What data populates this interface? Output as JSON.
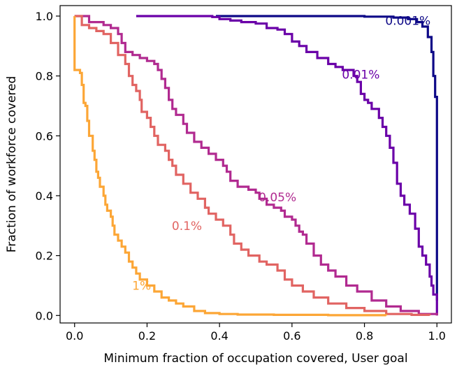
{
  "chart_data": {
    "type": "line",
    "xlabel": "Minimum fraction of occupation covered, User goal",
    "ylabel": "Fraction of workforce covered",
    "xlim": [
      -0.04,
      1.04
    ],
    "ylim": [
      -0.025,
      1.035
    ],
    "xticks": [
      "0.0",
      "0.2",
      "0.4",
      "0.6",
      "0.8",
      "1.0"
    ],
    "yticks": [
      "0.0",
      "0.2",
      "0.4",
      "0.6",
      "0.8",
      "1.0"
    ],
    "grid": false,
    "legend": "none (direct labels on curves)",
    "series": [
      {
        "name": "0.001%",
        "color": "#0d0887",
        "label_at": [
          0.92,
          0.985
        ],
        "points": [
          [
            0.39,
            1.0
          ],
          [
            0.6,
            1.0
          ],
          [
            0.8,
            0.998
          ],
          [
            0.88,
            0.995
          ],
          [
            0.92,
            0.99
          ],
          [
            0.945,
            0.98
          ],
          [
            0.96,
            0.965
          ],
          [
            0.975,
            0.93
          ],
          [
            0.985,
            0.88
          ],
          [
            0.99,
            0.8
          ],
          [
            0.995,
            0.73
          ],
          [
            1.0,
            0.705
          ],
          [
            1.0,
            0.05
          ]
        ]
      },
      {
        "name": "0.01%",
        "color": "#6a00a8",
        "label_at": [
          0.79,
          0.805
        ],
        "points": [
          [
            0.17,
            1.0
          ],
          [
            0.38,
            0.997
          ],
          [
            0.4,
            0.99
          ],
          [
            0.43,
            0.985
          ],
          [
            0.46,
            0.98
          ],
          [
            0.5,
            0.975
          ],
          [
            0.53,
            0.96
          ],
          [
            0.56,
            0.955
          ],
          [
            0.58,
            0.94
          ],
          [
            0.6,
            0.915
          ],
          [
            0.62,
            0.9
          ],
          [
            0.64,
            0.88
          ],
          [
            0.67,
            0.86
          ],
          [
            0.7,
            0.84
          ],
          [
            0.72,
            0.83
          ],
          [
            0.74,
            0.82
          ],
          [
            0.77,
            0.8
          ],
          [
            0.78,
            0.78
          ],
          [
            0.79,
            0.74
          ],
          [
            0.8,
            0.72
          ],
          [
            0.81,
            0.71
          ],
          [
            0.82,
            0.69
          ],
          [
            0.84,
            0.66
          ],
          [
            0.85,
            0.63
          ],
          [
            0.86,
            0.6
          ],
          [
            0.87,
            0.56
          ],
          [
            0.88,
            0.51
          ],
          [
            0.89,
            0.44
          ],
          [
            0.9,
            0.4
          ],
          [
            0.91,
            0.37
          ],
          [
            0.925,
            0.34
          ],
          [
            0.94,
            0.29
          ],
          [
            0.95,
            0.23
          ],
          [
            0.96,
            0.2
          ],
          [
            0.97,
            0.17
          ],
          [
            0.98,
            0.13
          ],
          [
            0.985,
            0.1
          ],
          [
            0.99,
            0.07
          ],
          [
            1.0,
            0.05
          ],
          [
            1.0,
            0.0
          ]
        ]
      },
      {
        "name": "0.05%",
        "color": "#b12a90",
        "label_at": [
          0.56,
          0.395
        ],
        "points": [
          [
            0.0,
            1.0
          ],
          [
            0.04,
            0.98
          ],
          [
            0.08,
            0.97
          ],
          [
            0.1,
            0.96
          ],
          [
            0.12,
            0.94
          ],
          [
            0.13,
            0.91
          ],
          [
            0.14,
            0.88
          ],
          [
            0.16,
            0.87
          ],
          [
            0.18,
            0.86
          ],
          [
            0.2,
            0.85
          ],
          [
            0.22,
            0.84
          ],
          [
            0.23,
            0.82
          ],
          [
            0.24,
            0.79
          ],
          [
            0.25,
            0.76
          ],
          [
            0.26,
            0.72
          ],
          [
            0.27,
            0.69
          ],
          [
            0.28,
            0.67
          ],
          [
            0.3,
            0.64
          ],
          [
            0.31,
            0.61
          ],
          [
            0.33,
            0.58
          ],
          [
            0.35,
            0.56
          ],
          [
            0.37,
            0.54
          ],
          [
            0.39,
            0.52
          ],
          [
            0.41,
            0.5
          ],
          [
            0.42,
            0.48
          ],
          [
            0.43,
            0.45
          ],
          [
            0.45,
            0.43
          ],
          [
            0.48,
            0.42
          ],
          [
            0.5,
            0.41
          ],
          [
            0.51,
            0.39
          ],
          [
            0.53,
            0.37
          ],
          [
            0.55,
            0.36
          ],
          [
            0.57,
            0.35
          ],
          [
            0.58,
            0.33
          ],
          [
            0.6,
            0.32
          ],
          [
            0.61,
            0.3
          ],
          [
            0.62,
            0.28
          ],
          [
            0.63,
            0.27
          ],
          [
            0.64,
            0.24
          ],
          [
            0.66,
            0.2
          ],
          [
            0.68,
            0.17
          ],
          [
            0.7,
            0.15
          ],
          [
            0.72,
            0.13
          ],
          [
            0.75,
            0.1
          ],
          [
            0.78,
            0.08
          ],
          [
            0.82,
            0.05
          ],
          [
            0.86,
            0.03
          ],
          [
            0.9,
            0.015
          ],
          [
            0.95,
            0.005
          ],
          [
            1.0,
            0.0
          ]
        ]
      },
      {
        "name": "0.1%",
        "color": "#e16462",
        "label_at": [
          0.31,
          0.3
        ],
        "points": [
          [
            0.0,
            1.0
          ],
          [
            0.02,
            0.97
          ],
          [
            0.04,
            0.96
          ],
          [
            0.06,
            0.95
          ],
          [
            0.08,
            0.94
          ],
          [
            0.1,
            0.91
          ],
          [
            0.12,
            0.87
          ],
          [
            0.14,
            0.84
          ],
          [
            0.15,
            0.8
          ],
          [
            0.16,
            0.77
          ],
          [
            0.17,
            0.75
          ],
          [
            0.18,
            0.72
          ],
          [
            0.185,
            0.68
          ],
          [
            0.2,
            0.66
          ],
          [
            0.21,
            0.63
          ],
          [
            0.22,
            0.6
          ],
          [
            0.23,
            0.57
          ],
          [
            0.25,
            0.55
          ],
          [
            0.26,
            0.52
          ],
          [
            0.27,
            0.5
          ],
          [
            0.28,
            0.47
          ],
          [
            0.3,
            0.44
          ],
          [
            0.32,
            0.41
          ],
          [
            0.34,
            0.39
          ],
          [
            0.36,
            0.36
          ],
          [
            0.37,
            0.34
          ],
          [
            0.39,
            0.32
          ],
          [
            0.41,
            0.3
          ],
          [
            0.43,
            0.27
          ],
          [
            0.44,
            0.24
          ],
          [
            0.46,
            0.22
          ],
          [
            0.48,
            0.2
          ],
          [
            0.51,
            0.18
          ],
          [
            0.53,
            0.17
          ],
          [
            0.56,
            0.15
          ],
          [
            0.58,
            0.12
          ],
          [
            0.6,
            0.1
          ],
          [
            0.63,
            0.08
          ],
          [
            0.66,
            0.06
          ],
          [
            0.7,
            0.04
          ],
          [
            0.75,
            0.025
          ],
          [
            0.8,
            0.015
          ],
          [
            0.86,
            0.005
          ],
          [
            0.93,
            0.002
          ],
          [
            0.98,
            0.0
          ]
        ]
      },
      {
        "name": "1%",
        "color": "#fca636",
        "label_at": [
          0.185,
          0.1
        ],
        "points": [
          [
            0.0,
            1.0
          ],
          [
            0.0,
            0.82
          ],
          [
            0.015,
            0.81
          ],
          [
            0.02,
            0.77
          ],
          [
            0.025,
            0.71
          ],
          [
            0.03,
            0.7
          ],
          [
            0.035,
            0.65
          ],
          [
            0.04,
            0.6
          ],
          [
            0.05,
            0.55
          ],
          [
            0.055,
            0.52
          ],
          [
            0.06,
            0.48
          ],
          [
            0.065,
            0.46
          ],
          [
            0.07,
            0.43
          ],
          [
            0.08,
            0.4
          ],
          [
            0.085,
            0.37
          ],
          [
            0.09,
            0.35
          ],
          [
            0.1,
            0.33
          ],
          [
            0.105,
            0.3
          ],
          [
            0.11,
            0.27
          ],
          [
            0.12,
            0.25
          ],
          [
            0.13,
            0.23
          ],
          [
            0.14,
            0.21
          ],
          [
            0.15,
            0.18
          ],
          [
            0.16,
            0.16
          ],
          [
            0.17,
            0.14
          ],
          [
            0.18,
            0.12
          ],
          [
            0.2,
            0.1
          ],
          [
            0.22,
            0.08
          ],
          [
            0.24,
            0.06
          ],
          [
            0.26,
            0.05
          ],
          [
            0.28,
            0.04
          ],
          [
            0.3,
            0.03
          ],
          [
            0.33,
            0.015
          ],
          [
            0.36,
            0.008
          ],
          [
            0.4,
            0.005
          ],
          [
            0.45,
            0.003
          ],
          [
            0.55,
            0.002
          ],
          [
            0.7,
            0.001
          ],
          [
            0.86,
            0.0
          ]
        ]
      }
    ]
  }
}
